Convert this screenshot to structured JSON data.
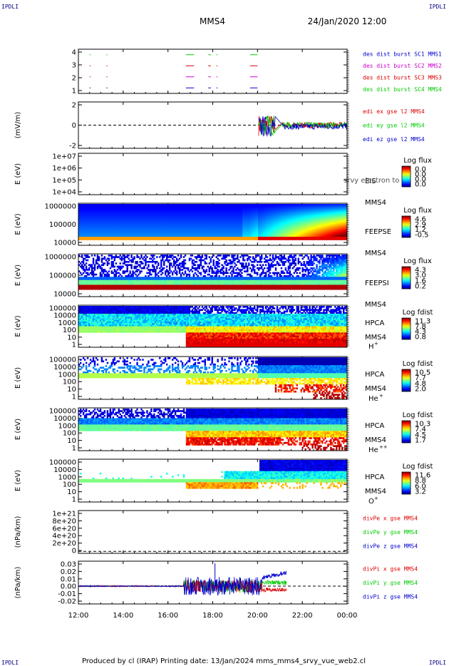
{
  "corner_label": "IPDLI",
  "header": {
    "spacecraft": "MMS4",
    "datetime": "24/Jan/2020 12:00"
  },
  "footer": "Produced by cl (IRAP)   Printing date: 13/Jan/2024   mms_mms4_srvy_vue_web2.cl",
  "time_axis": {
    "start": "12:00",
    "end": "00:00",
    "ticks": [
      "12:00",
      "14:00",
      "16:00",
      "18:00",
      "20:00",
      "22:00",
      "00:00"
    ]
  },
  "panels": [
    {
      "id": "burst",
      "ylabel": "",
      "yticks": [
        "4",
        "3",
        "2",
        "1"
      ],
      "legend": [
        {
          "text": "des dist burst SC1 MMS1",
          "color": "#0000cc"
        },
        {
          "text": "des dist burst SC2 MMS2",
          "color": "#cc00cc"
        },
        {
          "text": "des dist burst SC3 MMS3",
          "color": "#dd0000"
        },
        {
          "text": "des dist burst SC4 MMS4",
          "color": "#00cc00"
        }
      ],
      "chart_data": {
        "type": "line",
        "ylim": [
          0.5,
          4.5
        ],
        "series": [
          {
            "name": "des dist burst SC1 MMS1",
            "y": 1,
            "intervals": [
              [
                "12:30",
                "12:33"
              ],
              [
                "13:15",
                "13:17"
              ],
              [
                "16:48",
                "17:10"
              ],
              [
                "17:48",
                "17:55"
              ],
              [
                "18:10",
                "18:13"
              ],
              [
                "19:40",
                "20:00"
              ]
            ]
          },
          {
            "name": "des dist burst SC2 MMS2",
            "y": 2,
            "intervals": [
              [
                "12:30",
                "12:33"
              ],
              [
                "13:15",
                "13:17"
              ],
              [
                "16:48",
                "17:10"
              ],
              [
                "17:48",
                "17:55"
              ],
              [
                "18:10",
                "18:13"
              ],
              [
                "19:40",
                "20:00"
              ]
            ]
          },
          {
            "name": "des dist burst SC3 MMS3",
            "y": 3,
            "intervals": [
              [
                "12:30",
                "12:33"
              ],
              [
                "13:15",
                "13:17"
              ],
              [
                "16:48",
                "17:10"
              ],
              [
                "17:48",
                "17:55"
              ],
              [
                "18:10",
                "18:13"
              ],
              [
                "19:40",
                "20:00"
              ]
            ]
          },
          {
            "name": "des dist burst SC4 MMS4",
            "y": 4,
            "intervals": [
              [
                "12:30",
                "12:33"
              ],
              [
                "13:15",
                "13:17"
              ],
              [
                "16:48",
                "17:10"
              ],
              [
                "17:48",
                "17:55"
              ],
              [
                "18:10",
                "18:13"
              ],
              [
                "19:40",
                "20:00"
              ]
            ]
          }
        ]
      }
    },
    {
      "id": "edi",
      "ylabel": "(mV/m)",
      "yticks": [
        "2",
        "0",
        "-2"
      ],
      "legend": [
        {
          "text": "edi ex gse l2 MMS4",
          "color": "#dd0000"
        },
        {
          "text": "edi ey gse l2 MMS4",
          "color": "#00cc00"
        },
        {
          "text": "edi ez gse l2 MMS4",
          "color": "#0000cc"
        }
      ],
      "chart_data": {
        "type": "line",
        "ylim": [
          -3.5,
          3.5
        ],
        "x_range": [
          "20:00",
          "00:00"
        ],
        "series": [
          "edi ex gse l2 MMS4",
          "edi ey gse l2 MMS4",
          "edi ez gse l2 MMS4"
        ]
      }
    },
    {
      "id": "eis",
      "ylabel": "E (eV)",
      "yticks": [
        "1e+07",
        "1e+06",
        "1e+05",
        "1e+04"
      ],
      "name_lines": [
        "EIS",
        "MMS4"
      ],
      "overlay": "srvy electron to",
      "cbar": {
        "title": "Log flux",
        "ticks": [
          "0.0",
          "0.0",
          "0.0",
          "0.0"
        ]
      },
      "chart_data": {
        "type": "heatmap",
        "ylim": [
          10000,
          10000000
        ],
        "yscale": "log",
        "values": []
      }
    },
    {
      "id": "feepse",
      "ylabel": "E (eV)",
      "yticks": [
        "1000000",
        "100000",
        "10000"
      ],
      "name_lines": [
        "FEEPSE",
        "MMS4"
      ],
      "cbar": {
        "title": "Log flux",
        "ticks": [
          "4.6",
          "2.9",
          "1.2",
          "-0.5"
        ]
      },
      "chart_data": {
        "type": "heatmap",
        "ylim": [
          10000,
          1000000
        ],
        "yscale": "log",
        "zlim": [
          -0.5,
          4.6
        ]
      }
    },
    {
      "id": "feepsi",
      "ylabel": "E (eV)",
      "yticks": [
        "1000000",
        "100000",
        "10000"
      ],
      "name_lines": [
        "FEEPSI",
        "MMS4"
      ],
      "cbar": {
        "title": "Log flux",
        "ticks": [
          "4.3",
          "3.0",
          "1.6",
          "0.2"
        ]
      },
      "chart_data": {
        "type": "heatmap",
        "ylim": [
          10000,
          1000000
        ],
        "yscale": "log",
        "zlim": [
          0.2,
          4.3
        ]
      }
    },
    {
      "id": "hpca_h",
      "ylabel": "E (eV)",
      "yticks": [
        "100000",
        "10000",
        "1000",
        "100",
        "10",
        "1"
      ],
      "name_lines": [
        "HPCA",
        "MMS4"
      ],
      "species": [
        "H",
        "+"
      ],
      "cbar": {
        "title": "Log fdist",
        "ticks": [
          "11.3",
          "7.8",
          "4.3",
          "0.8"
        ]
      },
      "chart_data": {
        "type": "heatmap",
        "ylim": [
          1,
          100000
        ],
        "yscale": "log",
        "zlim": [
          0.8,
          11.3
        ]
      }
    },
    {
      "id": "hpca_he",
      "ylabel": "E (eV)",
      "yticks": [
        "100000",
        "10000",
        "1000",
        "100",
        "10",
        "1"
      ],
      "name_lines": [
        "HPCA",
        "MMS4"
      ],
      "species": [
        "He",
        "+"
      ],
      "cbar": {
        "title": "Log fdist",
        "ticks": [
          "10.5",
          "7.7",
          "4.8",
          "2.0"
        ]
      },
      "chart_data": {
        "type": "heatmap",
        "ylim": [
          1,
          100000
        ],
        "yscale": "log",
        "zlim": [
          2.0,
          10.5
        ]
      }
    },
    {
      "id": "hpca_hepp",
      "ylabel": "E (eV)",
      "yticks": [
        "100000",
        "10000",
        "1000",
        "100",
        "10",
        "1"
      ],
      "name_lines": [
        "HPCA",
        "MMS4"
      ],
      "species": [
        "He",
        "++"
      ],
      "cbar": {
        "title": "Log fdist",
        "ticks": [
          "10.3",
          "7.4",
          "4.5",
          "1.7"
        ]
      },
      "chart_data": {
        "type": "heatmap",
        "ylim": [
          1,
          100000
        ],
        "yscale": "log",
        "zlim": [
          1.7,
          10.3
        ]
      }
    },
    {
      "id": "hpca_o",
      "ylabel": "E (eV)",
      "yticks": [
        "100000",
        "10000",
        "1000",
        "100",
        "10",
        "1"
      ],
      "name_lines": [
        "HPCA",
        "MMS4"
      ],
      "species": [
        "O",
        "+"
      ],
      "cbar": {
        "title": "Log fdist",
        "ticks": [
          "11.6",
          "8.8",
          "6.0",
          "3.2"
        ]
      },
      "chart_data": {
        "type": "heatmap",
        "ylim": [
          1,
          100000
        ],
        "yscale": "log",
        "zlim": [
          3.2,
          11.6
        ]
      }
    },
    {
      "id": "divpe",
      "ylabel": "(nPa/km)",
      "yticks": [
        "1e+21",
        "8e+20",
        "6e+20",
        "4e+20",
        "2e+20",
        "0"
      ],
      "legend": [
        {
          "text": "divPe x gse MMS4",
          "color": "#dd0000"
        },
        {
          "text": "divPe y gse MMS4",
          "color": "#00cc00"
        },
        {
          "text": "divPe z gse MMS4",
          "color": "#0000cc"
        }
      ],
      "chart_data": {
        "type": "line",
        "ylim": [
          -5e+19,
          1.05e+21
        ],
        "series": []
      }
    },
    {
      "id": "divpi",
      "ylabel": "(nPa/km)",
      "yticks": [
        "0.03",
        "0.02",
        "0.01",
        "0.00",
        "-0.01",
        "-0.02"
      ],
      "legend": [
        {
          "text": "divPi x gse MMS4",
          "color": "#dd0000"
        },
        {
          "text": "divPi y gse MMS4",
          "color": "#00cc00"
        },
        {
          "text": "divPi z gse MMS4",
          "color": "#0000cc"
        }
      ],
      "chart_data": {
        "type": "line",
        "ylim": [
          -0.025,
          0.035
        ],
        "series": [
          "divPi x gse MMS4",
          "divPi y gse MMS4",
          "divPi z gse MMS4"
        ]
      }
    }
  ]
}
